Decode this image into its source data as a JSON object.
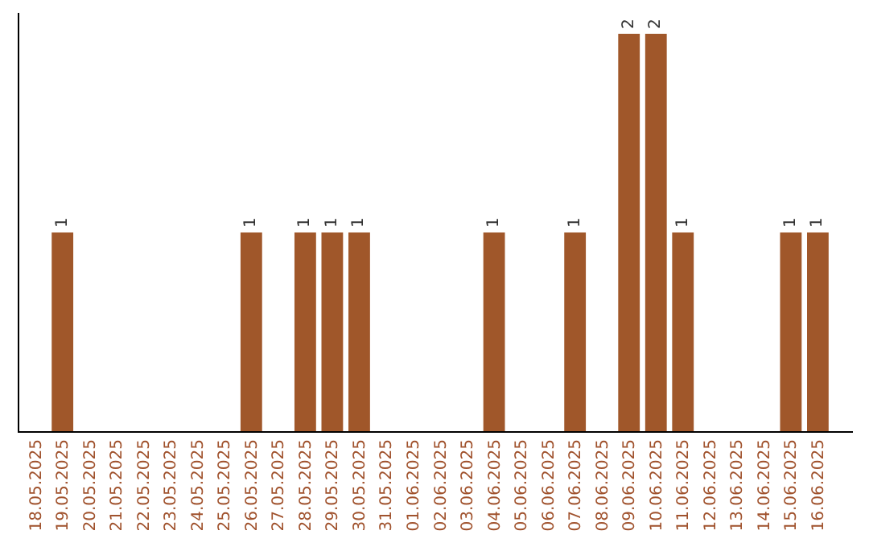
{
  "chart_data": {
    "type": "bar",
    "categories": [
      "18.05.2025",
      "19.05.2025",
      "20.05.2025",
      "21.05.2025",
      "22.05.2025",
      "23.05.2025",
      "24.05.2025",
      "25.05.2025",
      "26.05.2025",
      "27.05.2025",
      "28.05.2025",
      "29.05.2025",
      "30.05.2025",
      "31.05.2025",
      "01.06.2025",
      "02.06.2025",
      "03.06.2025",
      "04.06.2025",
      "05.06.2025",
      "06.06.2025",
      "07.06.2025",
      "08.06.2025",
      "09.06.2025",
      "10.06.2025",
      "11.06.2025",
      "12.06.2025",
      "13.06.2025",
      "14.06.2025",
      "15.06.2025",
      "16.06.2025"
    ],
    "values": [
      0,
      1,
      0,
      0,
      0,
      0,
      0,
      0,
      1,
      0,
      1,
      1,
      1,
      0,
      0,
      0,
      0,
      1,
      0,
      0,
      1,
      0,
      2,
      2,
      1,
      0,
      0,
      0,
      1,
      1
    ],
    "value_labels": [
      null,
      "1",
      null,
      null,
      null,
      null,
      null,
      null,
      "1",
      null,
      "1",
      "1",
      "1",
      null,
      null,
      null,
      null,
      "1",
      null,
      null,
      "1",
      null,
      "2",
      "2",
      "1",
      null,
      null,
      null,
      "1",
      "1"
    ],
    "color": "#a0572a",
    "tick_labels": "x"
  }
}
